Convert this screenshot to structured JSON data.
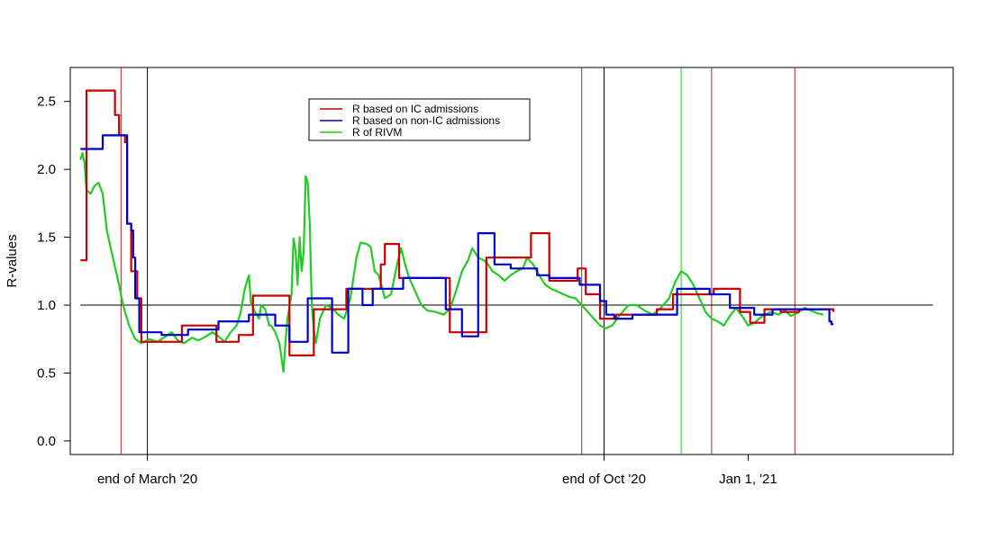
{
  "chart_data": {
    "type": "line",
    "title": "",
    "xlabel": "",
    "ylabel": "R-values",
    "x_unit": "days since 2020-02-27",
    "xlim": [
      -5,
      430
    ],
    "ylim": [
      -0.1,
      2.75
    ],
    "y_ticks": [
      "0.0",
      "0.5",
      "1.0",
      "1.5",
      "2.0",
      "2.5"
    ],
    "x_ticks": [
      {
        "x": 33,
        "label": "end of March '20"
      },
      {
        "x": 258,
        "label": "end of Oct '20"
      },
      {
        "x": 329,
        "label": "Jan 1, '21"
      }
    ],
    "grid": false,
    "legend_position": "top-center",
    "hline": {
      "y": 1.0,
      "x_range": [
        0,
        420
      ],
      "color": "#000000"
    },
    "vlines": [
      {
        "x": 20,
        "color": "#b22222"
      },
      {
        "x": 33,
        "color": "#000000"
      },
      {
        "x": 247,
        "color": "#b22222"
      },
      {
        "x": 258,
        "color": "#000000"
      },
      {
        "x": 296,
        "color": "#22cc22"
      },
      {
        "x": 311,
        "color": "#b22222"
      },
      {
        "x": 352,
        "color": "#b22222"
      }
    ],
    "series": [
      {
        "name": "R based on IC admissions",
        "color": "#cc0000",
        "step": true,
        "points": [
          [
            0,
            1.33
          ],
          [
            2,
            1.33
          ],
          [
            3,
            2.58
          ],
          [
            16,
            2.58
          ],
          [
            17,
            2.4
          ],
          [
            19,
            2.25
          ],
          [
            22,
            2.2
          ],
          [
            23,
            1.6
          ],
          [
            25,
            1.25
          ],
          [
            28,
            1.05
          ],
          [
            30,
            0.73
          ],
          [
            48,
            0.73
          ],
          [
            50,
            0.85
          ],
          [
            66,
            0.85
          ],
          [
            67,
            0.73
          ],
          [
            76,
            0.73
          ],
          [
            78,
            0.78
          ],
          [
            84,
            0.78
          ],
          [
            85,
            1.07
          ],
          [
            102,
            1.07
          ],
          [
            103,
            0.63
          ],
          [
            114,
            0.63
          ],
          [
            115,
            0.97
          ],
          [
            127,
            0.97
          ],
          [
            131,
            1.12
          ],
          [
            146,
            1.12
          ],
          [
            148,
            1.3
          ],
          [
            150,
            1.45
          ],
          [
            156,
            1.45
          ],
          [
            157,
            1.2
          ],
          [
            181,
            1.2
          ],
          [
            182,
            0.8
          ],
          [
            197,
            0.8
          ],
          [
            200,
            1.35
          ],
          [
            221,
            1.35
          ],
          [
            222,
            1.53
          ],
          [
            230,
            1.53
          ],
          [
            231,
            1.18
          ],
          [
            244,
            1.18
          ],
          [
            245,
            1.27
          ],
          [
            248,
            1.27
          ],
          [
            249,
            1.08
          ],
          [
            254,
            1.08
          ],
          [
            256,
            0.9
          ],
          [
            262,
            0.9
          ],
          [
            264,
            0.93
          ],
          [
            283,
            0.93
          ],
          [
            284,
            0.97
          ],
          [
            291,
            0.97
          ],
          [
            292,
            1.08
          ],
          [
            310,
            1.08
          ],
          [
            312,
            1.12
          ],
          [
            323,
            1.12
          ],
          [
            325,
            0.95
          ],
          [
            328,
            0.95
          ],
          [
            330,
            0.87
          ],
          [
            335,
            0.87
          ],
          [
            337,
            0.97
          ],
          [
            343,
            0.97
          ],
          [
            345,
            0.95
          ],
          [
            353,
            0.95
          ],
          [
            354,
            0.97
          ],
          [
            371,
            0.95
          ]
        ]
      },
      {
        "name": "R based on non-IC admissions",
        "color": "#0000cc",
        "step": true,
        "points": [
          [
            0,
            2.15
          ],
          [
            10,
            2.15
          ],
          [
            11,
            2.25
          ],
          [
            22,
            2.25
          ],
          [
            23,
            1.6
          ],
          [
            25,
            1.55
          ],
          [
            26,
            1.35
          ],
          [
            27,
            1.05
          ],
          [
            29,
            0.8
          ],
          [
            39,
            0.8
          ],
          [
            40,
            0.78
          ],
          [
            52,
            0.78
          ],
          [
            53,
            0.82
          ],
          [
            67,
            0.82
          ],
          [
            68,
            0.88
          ],
          [
            82,
            0.88
          ],
          [
            83,
            0.93
          ],
          [
            95,
            0.93
          ],
          [
            96,
            0.85
          ],
          [
            100,
            0.85
          ],
          [
            103,
            0.73
          ],
          [
            111,
            0.73
          ],
          [
            112,
            1.05
          ],
          [
            123,
            1.05
          ],
          [
            124,
            0.65
          ],
          [
            131,
            0.65
          ],
          [
            132,
            1.12
          ],
          [
            138,
            1.12
          ],
          [
            139,
            1.0
          ],
          [
            143,
            1.0
          ],
          [
            144,
            1.12
          ],
          [
            158,
            1.12
          ],
          [
            159,
            1.2
          ],
          [
            176,
            1.2
          ],
          [
            180,
            0.97
          ],
          [
            187,
            0.97
          ],
          [
            188,
            0.77
          ],
          [
            194,
            0.77
          ],
          [
            196,
            1.53
          ],
          [
            202,
            1.53
          ],
          [
            204,
            1.3
          ],
          [
            210,
            1.3
          ],
          [
            212,
            1.27
          ],
          [
            224,
            1.27
          ],
          [
            225,
            1.22
          ],
          [
            231,
            1.2
          ],
          [
            245,
            1.2
          ],
          [
            246,
            1.15
          ],
          [
            253,
            1.15
          ],
          [
            256,
            1.03
          ],
          [
            259,
            0.93
          ],
          [
            263,
            0.9
          ],
          [
            270,
            0.9
          ],
          [
            272,
            0.93
          ],
          [
            293,
            0.93
          ],
          [
            294,
            1.12
          ],
          [
            309,
            1.12
          ],
          [
            310,
            1.08
          ],
          [
            318,
            1.08
          ],
          [
            320,
            0.98
          ],
          [
            332,
            0.93
          ],
          [
            340,
            0.93
          ],
          [
            341,
            0.97
          ],
          [
            368,
            0.97
          ],
          [
            369,
            0.88
          ],
          [
            370,
            0.86
          ],
          [
            371,
            0.86
          ]
        ]
      },
      {
        "name": "R of RIVM",
        "color": "#22cc22",
        "step": false,
        "points": [
          [
            0,
            2.07
          ],
          [
            1,
            2.12
          ],
          [
            2,
            2.05
          ],
          [
            3,
            1.85
          ],
          [
            5,
            1.82
          ],
          [
            7,
            1.88
          ],
          [
            9,
            1.9
          ],
          [
            11,
            1.82
          ],
          [
            13,
            1.55
          ],
          [
            16,
            1.35
          ],
          [
            19,
            1.15
          ],
          [
            21,
            1.0
          ],
          [
            24,
            0.85
          ],
          [
            27,
            0.75
          ],
          [
            30,
            0.72
          ],
          [
            34,
            0.75
          ],
          [
            38,
            0.73
          ],
          [
            42,
            0.77
          ],
          [
            45,
            0.8
          ],
          [
            48,
            0.74
          ],
          [
            51,
            0.72
          ],
          [
            55,
            0.76
          ],
          [
            58,
            0.74
          ],
          [
            62,
            0.77
          ],
          [
            65,
            0.8
          ],
          [
            68,
            0.77
          ],
          [
            71,
            0.73
          ],
          [
            74,
            0.8
          ],
          [
            77,
            0.85
          ],
          [
            79,
            0.95
          ],
          [
            81,
            1.12
          ],
          [
            83,
            1.22
          ],
          [
            84,
            1.02
          ],
          [
            86,
            0.95
          ],
          [
            88,
            0.9
          ],
          [
            89,
            1.0
          ],
          [
            91,
            0.97
          ],
          [
            93,
            0.85
          ],
          [
            94,
            0.85
          ],
          [
            96,
            0.8
          ],
          [
            98,
            0.72
          ],
          [
            99,
            0.62
          ],
          [
            100,
            0.51
          ],
          [
            101,
            0.72
          ],
          [
            102,
            0.9
          ],
          [
            104,
            1.08
          ],
          [
            105,
            1.49
          ],
          [
            106,
            1.4
          ],
          [
            107,
            1.15
          ],
          [
            108,
            1.5
          ],
          [
            109,
            1.25
          ],
          [
            110,
            1.4
          ],
          [
            111,
            1.95
          ],
          [
            112,
            1.9
          ],
          [
            113,
            1.6
          ],
          [
            114,
            1.0
          ],
          [
            115,
            0.82
          ],
          [
            116,
            0.72
          ],
          [
            118,
            0.9
          ],
          [
            121,
            1.0
          ],
          [
            124,
            0.98
          ],
          [
            127,
            0.93
          ],
          [
            130,
            0.9
          ],
          [
            133,
            1.05
          ],
          [
            136,
            1.35
          ],
          [
            138,
            1.46
          ],
          [
            141,
            1.45
          ],
          [
            143,
            1.43
          ],
          [
            145,
            1.25
          ],
          [
            147,
            1.22
          ],
          [
            150,
            1.05
          ],
          [
            153,
            1.08
          ],
          [
            156,
            1.3
          ],
          [
            158,
            1.42
          ],
          [
            160,
            1.3
          ],
          [
            162,
            1.2
          ],
          [
            165,
            1.1
          ],
          [
            168,
            1.0
          ],
          [
            171,
            0.96
          ],
          [
            175,
            0.95
          ],
          [
            179,
            0.93
          ],
          [
            182,
            0.97
          ],
          [
            185,
            1.1
          ],
          [
            188,
            1.25
          ],
          [
            191,
            1.33
          ],
          [
            193,
            1.42
          ],
          [
            196,
            1.35
          ],
          [
            200,
            1.32
          ],
          [
            203,
            1.25
          ],
          [
            206,
            1.22
          ],
          [
            209,
            1.18
          ],
          [
            212,
            1.22
          ],
          [
            215,
            1.25
          ],
          [
            218,
            1.27
          ],
          [
            220,
            1.35
          ],
          [
            223,
            1.3
          ],
          [
            226,
            1.22
          ],
          [
            229,
            1.15
          ],
          [
            232,
            1.12
          ],
          [
            235,
            1.1
          ],
          [
            238,
            1.08
          ],
          [
            241,
            1.06
          ],
          [
            244,
            1.05
          ],
          [
            247,
            1.0
          ],
          [
            250,
            0.95
          ],
          [
            253,
            0.9
          ],
          [
            256,
            0.85
          ],
          [
            259,
            0.83
          ],
          [
            262,
            0.85
          ],
          [
            266,
            0.93
          ],
          [
            270,
            1.0
          ],
          [
            274,
            1.0
          ],
          [
            278,
            0.96
          ],
          [
            282,
            0.93
          ],
          [
            286,
            0.98
          ],
          [
            290,
            1.05
          ],
          [
            293,
            1.17
          ],
          [
            296,
            1.25
          ],
          [
            299,
            1.22
          ],
          [
            302,
            1.15
          ],
          [
            305,
            1.05
          ],
          [
            308,
            0.95
          ],
          [
            311,
            0.9
          ],
          [
            314,
            0.88
          ],
          [
            317,
            0.85
          ],
          [
            320,
            0.92
          ],
          [
            323,
            0.98
          ],
          [
            326,
            0.92
          ],
          [
            329,
            0.85
          ],
          [
            332,
            0.87
          ],
          [
            336,
            0.92
          ],
          [
            340,
            0.95
          ],
          [
            344,
            0.93
          ],
          [
            347,
            0.96
          ],
          [
            350,
            0.92
          ],
          [
            353,
            0.94
          ],
          [
            357,
            0.98
          ],
          [
            360,
            0.96
          ],
          [
            363,
            0.94
          ],
          [
            366,
            0.93
          ]
        ]
      }
    ]
  }
}
